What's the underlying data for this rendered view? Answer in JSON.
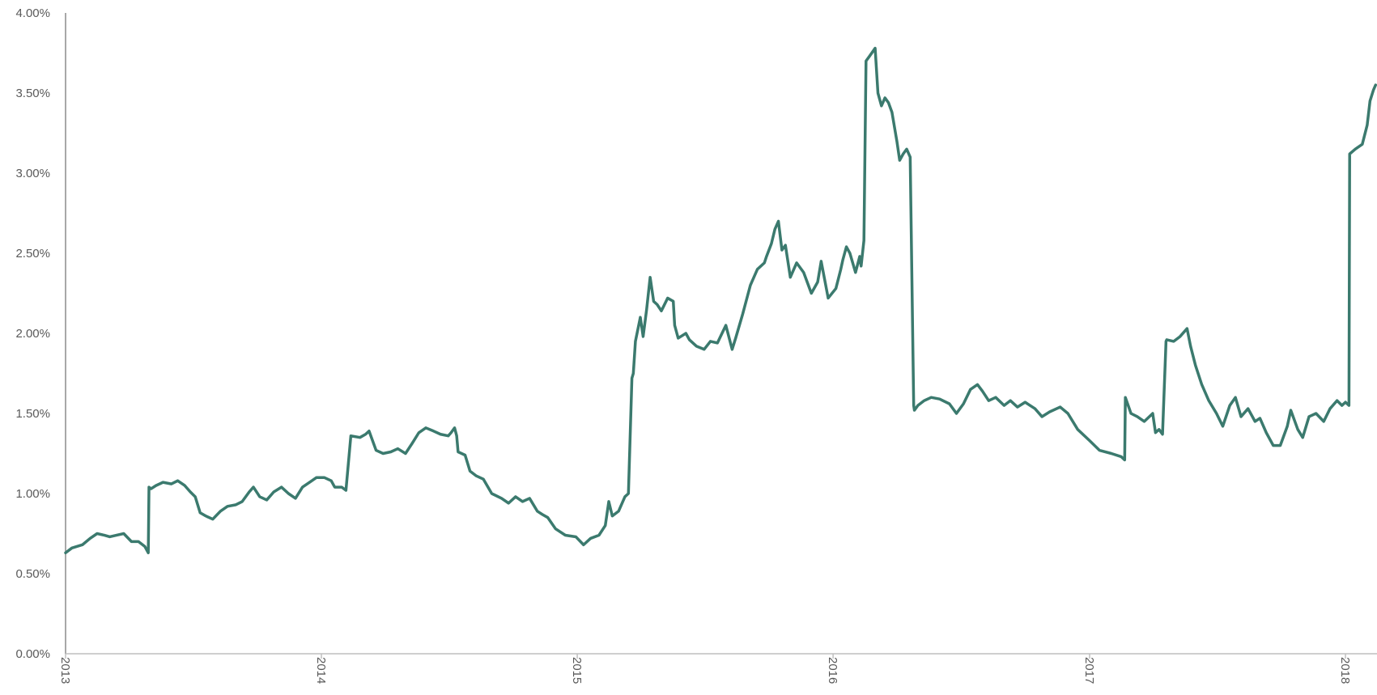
{
  "colors": {
    "series_line": "#3B7A6E",
    "axis": "#BFBFBF",
    "y_axis_line": "#8C8C8C",
    "tick_text": "#595959"
  },
  "chart_data": {
    "type": "line",
    "title": "",
    "xlabel": "",
    "ylabel": "",
    "grid": false,
    "legend": "none",
    "xlim": [
      "2013-01-01",
      "2018-02-15"
    ],
    "ylim": [
      0,
      0.04
    ],
    "x_tick_labels": [
      "2013",
      "2014",
      "2015",
      "2016",
      "2017",
      "2018"
    ],
    "y_tick_labels": [
      "0.00%",
      "0.50%",
      "1.00%",
      "1.50%",
      "2.00%",
      "2.50%",
      "3.00%",
      "3.50%",
      "4.00%"
    ],
    "y_ticks": [
      0,
      0.005,
      0.01,
      0.015,
      0.02,
      0.025,
      0.03,
      0.035,
      0.04
    ],
    "series": [
      {
        "x": [
          "2013-01-01",
          "2013-01-10",
          "2013-01-25",
          "2013-02-05",
          "2013-02-15",
          "2013-02-25",
          "2013-03-05",
          "2013-03-15",
          "2013-03-25",
          "2013-04-05",
          "2013-04-15",
          "2013-04-24",
          "2013-04-29",
          "2013-04-30",
          "2013-05-03",
          "2013-05-10",
          "2013-05-20",
          "2013-06-01",
          "2013-06-10",
          "2013-06-20",
          "2013-06-28",
          "2013-07-05",
          "2013-07-12",
          "2013-07-20",
          "2013-07-30",
          "2013-08-10",
          "2013-08-20",
          "2013-09-01",
          "2013-09-10",
          "2013-09-20",
          "2013-09-26",
          "2013-10-05",
          "2013-10-15",
          "2013-10-25",
          "2013-11-05",
          "2013-11-15",
          "2013-11-25",
          "2013-12-05",
          "2013-12-15",
          "2013-12-25",
          "2014-01-05",
          "2014-01-15",
          "2014-01-20",
          "2014-01-30",
          "2014-02-05",
          "2014-02-12",
          "2014-02-25",
          "2014-03-05",
          "2014-03-10",
          "2014-03-20",
          "2014-03-30",
          "2014-04-10",
          "2014-04-20",
          "2014-05-01",
          "2014-05-10",
          "2014-05-20",
          "2014-05-30",
          "2014-06-10",
          "2014-06-20",
          "2014-07-01",
          "2014-07-05",
          "2014-07-10",
          "2014-07-13",
          "2014-07-15",
          "2014-07-25",
          "2014-08-01",
          "2014-08-10",
          "2014-08-20",
          "2014-09-01",
          "2014-09-15",
          "2014-09-25",
          "2014-10-05",
          "2014-10-15",
          "2014-10-25",
          "2014-11-05",
          "2014-11-12",
          "2014-11-20",
          "2014-12-01",
          "2014-12-15",
          "2014-12-30",
          "2015-01-10",
          "2015-01-20",
          "2015-02-01",
          "2015-02-10",
          "2015-02-15",
          "2015-02-20",
          "2015-03-01",
          "2015-03-10",
          "2015-03-15",
          "2015-03-20",
          "2015-03-22",
          "2015-03-25",
          "2015-04-01",
          "2015-04-05",
          "2015-04-10",
          "2015-04-15",
          "2015-04-20",
          "2015-04-25",
          "2015-05-01",
          "2015-05-10",
          "2015-05-18",
          "2015-05-20",
          "2015-05-25",
          "2015-06-05",
          "2015-06-10",
          "2015-06-20",
          "2015-07-01",
          "2015-07-10",
          "2015-07-20",
          "2015-08-01",
          "2015-08-10",
          "2015-08-15",
          "2015-08-25",
          "2015-09-05",
          "2015-09-15",
          "2015-09-25",
          "2015-09-28",
          "2015-10-05",
          "2015-10-10",
          "2015-10-15",
          "2015-10-20",
          "2015-10-25",
          "2015-11-01",
          "2015-11-10",
          "2015-11-20",
          "2015-12-01",
          "2015-12-10",
          "2015-12-15",
          "2015-12-25",
          "2016-01-05",
          "2016-01-12",
          "2016-01-15",
          "2016-01-20",
          "2016-01-25",
          "2016-02-02",
          "2016-02-08",
          "2016-02-10",
          "2016-02-14",
          "2016-02-17",
          "2016-02-22",
          "2016-03-01",
          "2016-03-05",
          "2016-03-10",
          "2016-03-15",
          "2016-03-20",
          "2016-03-25",
          "2016-04-01",
          "2016-04-05",
          "2016-04-10",
          "2016-04-15",
          "2016-04-20",
          "2016-04-25",
          "2016-04-26",
          "2016-05-01",
          "2016-05-10",
          "2016-05-20",
          "2016-06-01",
          "2016-06-15",
          "2016-06-25",
          "2016-07-05",
          "2016-07-15",
          "2016-07-25",
          "2016-08-01",
          "2016-08-10",
          "2016-08-20",
          "2016-09-01",
          "2016-09-10",
          "2016-09-20",
          "2016-10-01",
          "2016-10-15",
          "2016-10-25",
          "2016-11-05",
          "2016-11-20",
          "2016-12-01",
          "2016-12-15",
          "2017-01-01",
          "2017-01-15",
          "2017-02-01",
          "2017-02-15",
          "2017-02-20",
          "2017-02-21",
          "2017-03-01",
          "2017-03-10",
          "2017-03-20",
          "2017-04-01",
          "2017-04-05",
          "2017-04-10",
          "2017-04-15",
          "2017-04-20",
          "2017-04-21",
          "2017-05-01",
          "2017-05-10",
          "2017-05-20",
          "2017-05-25",
          "2017-06-01",
          "2017-06-10",
          "2017-06-20",
          "2017-07-01",
          "2017-07-10",
          "2017-07-20",
          "2017-07-28",
          "2017-08-05",
          "2017-08-15",
          "2017-08-25",
          "2017-09-01",
          "2017-09-10",
          "2017-09-20",
          "2017-09-30",
          "2017-10-10",
          "2017-10-15",
          "2017-10-25",
          "2017-11-01",
          "2017-11-10",
          "2017-11-20",
          "2017-12-01",
          "2017-12-10",
          "2017-12-20",
          "2017-12-27",
          "2018-01-01",
          "2018-01-06",
          "2018-01-07",
          "2018-01-15",
          "2018-01-25",
          "2018-02-01",
          "2018-02-05",
          "2018-02-10",
          "2018-02-13"
        ],
        "values": [
          0.0063,
          0.0066,
          0.0068,
          0.0072,
          0.0075,
          0.0074,
          0.0073,
          0.0074,
          0.0075,
          0.007,
          0.007,
          0.0067,
          0.0063,
          0.0104,
          0.0103,
          0.0105,
          0.0107,
          0.0106,
          0.0108,
          0.0105,
          0.0101,
          0.0098,
          0.0088,
          0.0086,
          0.0084,
          0.0089,
          0.0092,
          0.0093,
          0.0095,
          0.0101,
          0.0104,
          0.0098,
          0.0096,
          0.0101,
          0.0104,
          0.01,
          0.0097,
          0.0104,
          0.0107,
          0.011,
          0.011,
          0.0108,
          0.0104,
          0.0104,
          0.0102,
          0.0136,
          0.0135,
          0.0137,
          0.0139,
          0.0127,
          0.0125,
          0.0126,
          0.0128,
          0.0125,
          0.0131,
          0.0138,
          0.0141,
          0.0139,
          0.0137,
          0.0136,
          0.0138,
          0.0141,
          0.0136,
          0.0126,
          0.0124,
          0.0114,
          0.0111,
          0.0109,
          0.01,
          0.0097,
          0.0094,
          0.0098,
          0.0095,
          0.0097,
          0.0089,
          0.0087,
          0.0085,
          0.0078,
          0.0074,
          0.0073,
          0.0068,
          0.0072,
          0.0074,
          0.008,
          0.0095,
          0.0086,
          0.0089,
          0.0098,
          0.01,
          0.0172,
          0.0175,
          0.0195,
          0.021,
          0.0198,
          0.0215,
          0.0235,
          0.022,
          0.0218,
          0.0214,
          0.0222,
          0.022,
          0.0205,
          0.0197,
          0.02,
          0.0196,
          0.0192,
          0.019,
          0.0195,
          0.0194,
          0.0205,
          0.019,
          0.0197,
          0.0212,
          0.023,
          0.024,
          0.0244,
          0.0248,
          0.0256,
          0.0265,
          0.027,
          0.0252,
          0.0255,
          0.0235,
          0.0244,
          0.0238,
          0.0225,
          0.0232,
          0.0245,
          0.0222,
          0.0228,
          0.024,
          0.0246,
          0.0254,
          0.025,
          0.0238,
          0.0248,
          0.0242,
          0.0258,
          0.037,
          0.0373,
          0.0378,
          0.035,
          0.0342,
          0.0347,
          0.0344,
          0.0338,
          0.032,
          0.0308,
          0.0312,
          0.0315,
          0.031,
          0.0155,
          0.0152,
          0.0155,
          0.0158,
          0.016,
          0.0159,
          0.0156,
          0.015,
          0.0156,
          0.0165,
          0.0168,
          0.0164,
          0.0158,
          0.016,
          0.0155,
          0.0158,
          0.0154,
          0.0157,
          0.0153,
          0.0148,
          0.0151,
          0.0154,
          0.015,
          0.014,
          0.0133,
          0.0127,
          0.0125,
          0.0123,
          0.0121,
          0.016,
          0.015,
          0.0148,
          0.0145,
          0.015,
          0.0138,
          0.014,
          0.0137,
          0.0195,
          0.0196,
          0.0195,
          0.0198,
          0.0203,
          0.0192,
          0.018,
          0.0168,
          0.0158,
          0.015,
          0.0142,
          0.0155,
          0.016,
          0.0148,
          0.0153,
          0.0145,
          0.0147,
          0.0138,
          0.013,
          0.013,
          0.0142,
          0.0152,
          0.014,
          0.0135,
          0.0148,
          0.015,
          0.0145,
          0.0153,
          0.0158,
          0.0155,
          0.0157,
          0.0155,
          0.0312,
          0.0315,
          0.0318,
          0.033,
          0.0345,
          0.0352,
          0.0355
        ]
      }
    ]
  }
}
